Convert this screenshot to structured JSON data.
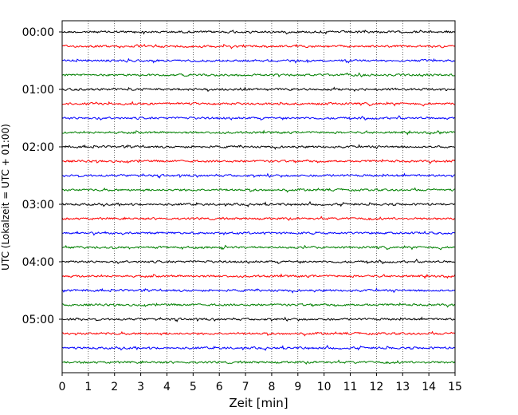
{
  "chart_data": {
    "type": "line",
    "title": "",
    "xlabel": "Zeit  [min]",
    "ylabel": "UTC (Lokalzeit = UTC + 01:00)",
    "xlim": [
      0,
      15
    ],
    "x_ticks": [
      "0",
      "1",
      "2",
      "3",
      "4",
      "5",
      "6",
      "7",
      "8",
      "9",
      "10",
      "11",
      "12",
      "13",
      "14",
      "15"
    ],
    "y_tick_labels": [
      "00:00",
      "01:00",
      "02:00",
      "03:00",
      "04:00",
      "05:00"
    ],
    "grid": "vertical dotted lines at each minute",
    "trace_interval_minutes": 15,
    "trace_colors_cycle": [
      "#000000",
      "#ff0000",
      "#0000ff",
      "#008000"
    ],
    "traces": [
      {
        "start": "00:00",
        "color": "#000000"
      },
      {
        "start": "00:15",
        "color": "#ff0000"
      },
      {
        "start": "00:30",
        "color": "#0000ff"
      },
      {
        "start": "00:45",
        "color": "#008000"
      },
      {
        "start": "01:00",
        "color": "#000000"
      },
      {
        "start": "01:15",
        "color": "#ff0000"
      },
      {
        "start": "01:30",
        "color": "#0000ff"
      },
      {
        "start": "01:45",
        "color": "#008000"
      },
      {
        "start": "02:00",
        "color": "#000000"
      },
      {
        "start": "02:15",
        "color": "#ff0000"
      },
      {
        "start": "02:30",
        "color": "#0000ff"
      },
      {
        "start": "02:45",
        "color": "#008000"
      },
      {
        "start": "03:00",
        "color": "#000000"
      },
      {
        "start": "03:15",
        "color": "#ff0000"
      },
      {
        "start": "03:30",
        "color": "#0000ff"
      },
      {
        "start": "03:45",
        "color": "#008000"
      },
      {
        "start": "04:00",
        "color": "#000000"
      },
      {
        "start": "04:15",
        "color": "#ff0000"
      },
      {
        "start": "04:30",
        "color": "#0000ff"
      },
      {
        "start": "04:45",
        "color": "#008000"
      },
      {
        "start": "05:00",
        "color": "#000000"
      },
      {
        "start": "05:15",
        "color": "#ff0000"
      },
      {
        "start": "05:30",
        "color": "#0000ff"
      },
      {
        "start": "05:45",
        "color": "#008000"
      }
    ]
  }
}
